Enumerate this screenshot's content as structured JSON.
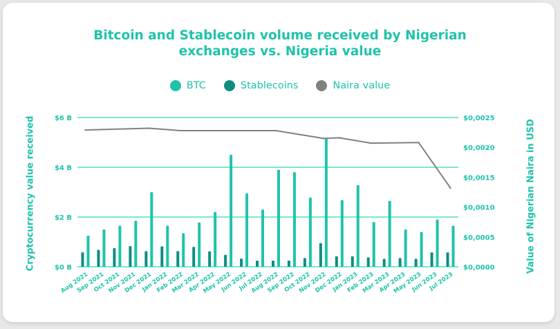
{
  "chart_data": {
    "type": "bar",
    "title": [
      "Bitcoin and Stablecoin volume received by Nigerian",
      "exchanges vs. Nigeria value"
    ],
    "ylabel": "Cryptocurrency value received",
    "y2label": "Value of Nigerian Naira in USD",
    "ylim": [
      0,
      6
    ],
    "y_ticks": [
      "$0 B",
      "$2 B",
      "$4 B",
      "$6 B"
    ],
    "y2lim": [
      0,
      0.0025
    ],
    "y2_ticks": [
      "$0,0000",
      "$0,0005",
      "$0,0010",
      "$0,0015",
      "$0,0020",
      "$0,0025"
    ],
    "grid": true,
    "legend_position": "top",
    "categories": [
      "Aug 2021",
      "Sep 2021",
      "Oct 2021",
      "Nov 2021",
      "Dec 2021",
      "Jan 2022",
      "Feb 2022",
      "Mar 2022",
      "Apr 2022",
      "May 2022",
      "Jun 2022",
      "Jul 2022",
      "Aug 2022",
      "Sep 2022",
      "Oct 2022",
      "Nov 2022",
      "Dec 2022",
      "Jan 2023",
      "Feb 2023",
      "Mar 2023",
      "Apr 2023",
      "May 2023",
      "Jun 2023",
      "Jul 2023"
    ],
    "series": [
      {
        "name": "BTC",
        "kind": "bar",
        "axis": "left",
        "color": "#1fc3aa",
        "values": [
          1.25,
          1.5,
          1.65,
          1.85,
          3.0,
          1.65,
          1.35,
          1.78,
          2.2,
          4.5,
          2.95,
          2.3,
          3.9,
          3.8,
          2.78,
          5.15,
          2.68,
          3.28,
          1.8,
          2.65,
          1.5,
          1.4,
          1.9,
          1.65
        ]
      },
      {
        "name": "Stablecoins",
        "kind": "bar",
        "axis": "left",
        "color": "#0e8d82",
        "values": [
          0.58,
          0.68,
          0.75,
          0.83,
          0.63,
          0.82,
          0.63,
          0.8,
          0.62,
          0.48,
          0.33,
          0.25,
          0.25,
          0.25,
          0.35,
          0.95,
          0.42,
          0.42,
          0.38,
          0.32,
          0.35,
          0.32,
          0.58,
          0.58
        ]
      },
      {
        "name": "Naira value",
        "kind": "line",
        "axis": "right",
        "color": "#808080",
        "values": [
          0.00229,
          null,
          null,
          null,
          0.00232,
          null,
          0.00228,
          null,
          null,
          null,
          null,
          null,
          0.00228,
          null,
          null,
          0.00215,
          0.00216,
          null,
          0.00207,
          null,
          null,
          0.00208,
          null,
          0.00132
        ]
      }
    ]
  }
}
